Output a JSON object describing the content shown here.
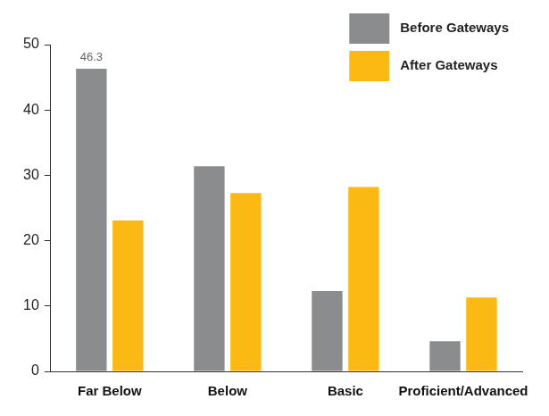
{
  "chart_data": {
    "type": "bar",
    "categories": [
      "Far Below",
      "Below",
      "Basic",
      "Proficient/Advanced"
    ],
    "series": [
      {
        "name": "Before Gateways",
        "color": "#8b8c8e",
        "values": [
          46.3,
          31.4,
          12.3,
          4.6
        ],
        "value_labels": [
          "46.3",
          null,
          null,
          null
        ]
      },
      {
        "name": "After Gateways",
        "color": "#fdb913",
        "values": [
          23.1,
          27.3,
          28.2,
          11.3
        ]
      }
    ],
    "ylim": [
      0,
      50
    ],
    "yticks": [
      0,
      10,
      20,
      30,
      40,
      50
    ],
    "grid": false,
    "legend": "top right"
  }
}
